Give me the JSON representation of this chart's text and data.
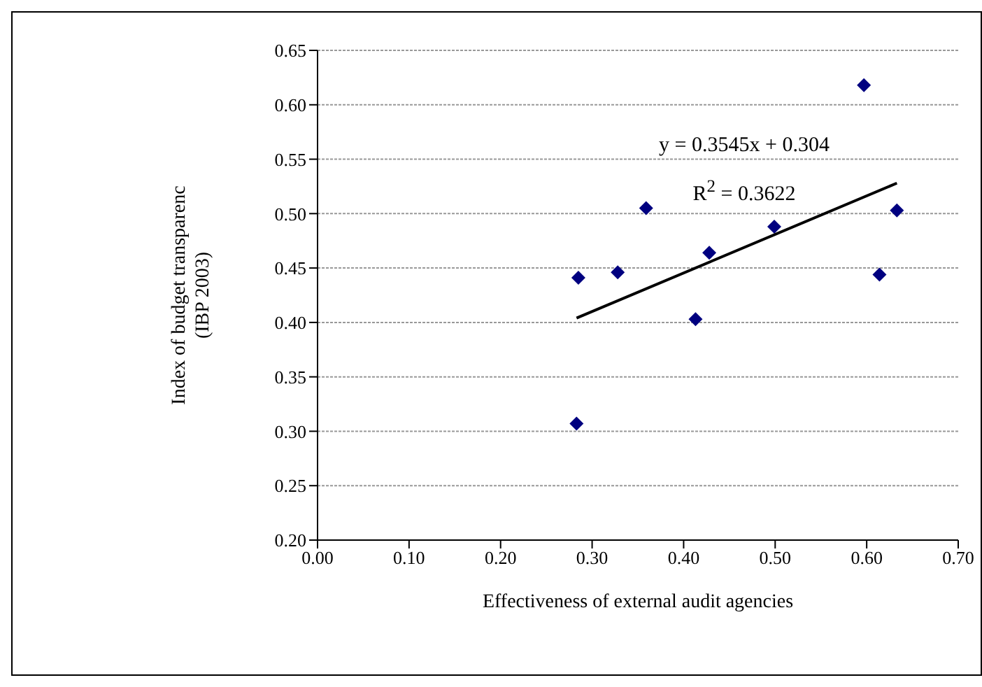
{
  "chart_data": {
    "type": "scatter",
    "xlabel": "Effectiveness of external audit agencies",
    "ylabel": "Index of budget transparenc\n(IBP 2003)",
    "series": [
      {
        "color": "#000080",
        "marker": "diamond",
        "x": [
          0.285,
          0.283,
          0.328,
          0.359,
          0.413,
          0.428,
          0.499,
          0.597,
          0.614,
          0.633
        ],
        "values": [
          0.441,
          0.307,
          0.446,
          0.505,
          0.403,
          0.464,
          0.488,
          0.618,
          0.444,
          0.503
        ]
      },
      {
        "type": "line",
        "color": "#000000",
        "marker": "none",
        "line_style": "solid",
        "x": [
          0.283,
          0.633
        ],
        "values": [
          0.404,
          0.528
        ]
      }
    ],
    "annotations": [
      "y = 0.3545x + 0.304",
      "R$^{2}$ = 0.3622"
    ],
    "xlim": [
      0,
      0.7
    ],
    "xticks": [
      {
        "value": 0,
        "label": "0.00"
      },
      {
        "value": 0.1,
        "label": "0.10"
      },
      {
        "value": 0.2,
        "label": "0.20"
      },
      {
        "value": 0.3,
        "label": "0.30"
      },
      {
        "value": 0.4,
        "label": "0.40"
      },
      {
        "value": 0.5,
        "label": "0.50"
      },
      {
        "value": 0.6,
        "label": "0.60"
      },
      {
        "value": 0.7,
        "label": "0.70"
      }
    ],
    "ylim": [
      0.2,
      0.65
    ],
    "yticks": [
      {
        "value": 0.2,
        "label": "0.20"
      },
      {
        "value": 0.25,
        "label": "0.25"
      },
      {
        "value": 0.3,
        "label": "0.30"
      },
      {
        "value": 0.35,
        "label": "0.35"
      },
      {
        "value": 0.4,
        "label": "0.40"
      },
      {
        "value": 0.45,
        "label": "0.45"
      },
      {
        "value": 0.5,
        "label": "0.50"
      },
      {
        "value": 0.55,
        "label": "0.55"
      },
      {
        "value": 0.6,
        "label": "0.60"
      },
      {
        "value": 0.65,
        "label": "0.65"
      }
    ],
    "grid": "y"
  }
}
